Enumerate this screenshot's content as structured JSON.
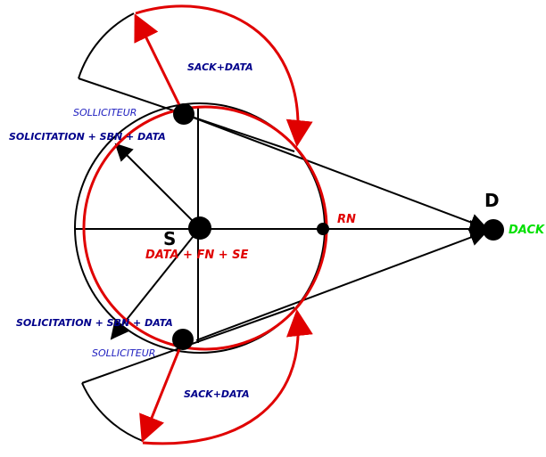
{
  "labels": {
    "sack_top": "SACK+DATA",
    "solliciteur_top": "SOLLICITEUR",
    "solicitation_top": "SOLICITATION + SBN + DATA",
    "d": "D",
    "dack": "DACK",
    "rn": "RN",
    "s": "S",
    "data_fn_se": "DATA + FN + SE",
    "solicitation_bottom": "SOLICITATION + SBN + DATA",
    "solliciteur_bottom": "SOLLICITEUR",
    "sack_bottom": "SACK+DATA"
  }
}
